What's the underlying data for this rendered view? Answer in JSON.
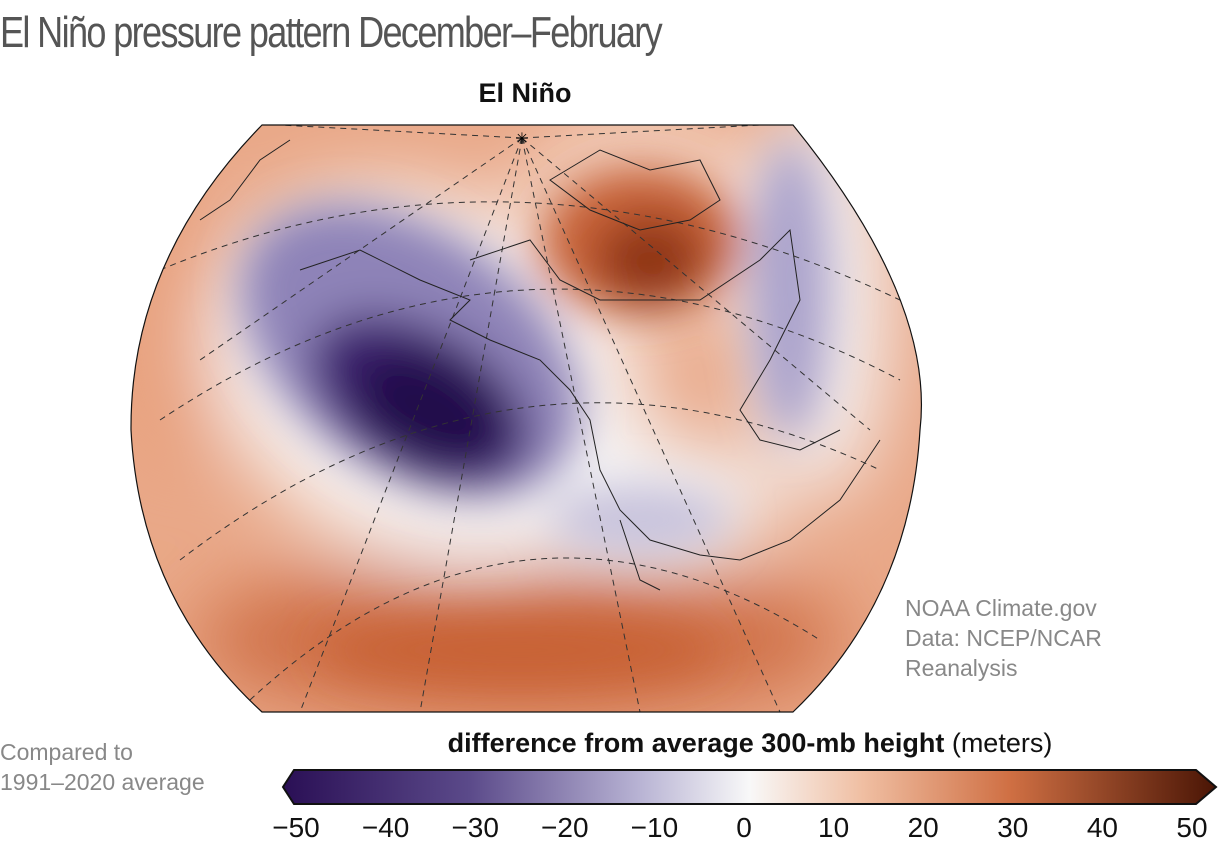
{
  "title": "El Niño pressure pattern December–February",
  "subtitle": "El Niño",
  "credit": [
    "NOAA Climate.gov",
    "Data: NCEP/NCAR",
    "Reanalysis"
  ],
  "comparison_note": [
    "Compared to",
    "1991–2020 average"
  ],
  "colorbar": {
    "label_bold": "difference from average 300-mb height",
    "label_units": "(meters)",
    "ticks": [
      "−50",
      "−40",
      "−30",
      "−20",
      "−10",
      "0",
      "10",
      "20",
      "30",
      "40",
      "50"
    ],
    "range": [
      -50,
      50
    ],
    "colors": [
      "#2a0f55",
      "#5b4a8a",
      "#a9a3c9",
      "#f7f7f7",
      "#eeb79a",
      "#c8653a",
      "#4a1505"
    ]
  },
  "map": {
    "region": "North Pacific and North America",
    "features": [
      {
        "name": "negative anomaly Gulf of Alaska",
        "value_approx": -50
      },
      {
        "name": "positive anomaly central Canada",
        "value_approx": 35
      },
      {
        "name": "positive anomaly subtropical Pacific",
        "value_approx": 30
      }
    ]
  }
}
